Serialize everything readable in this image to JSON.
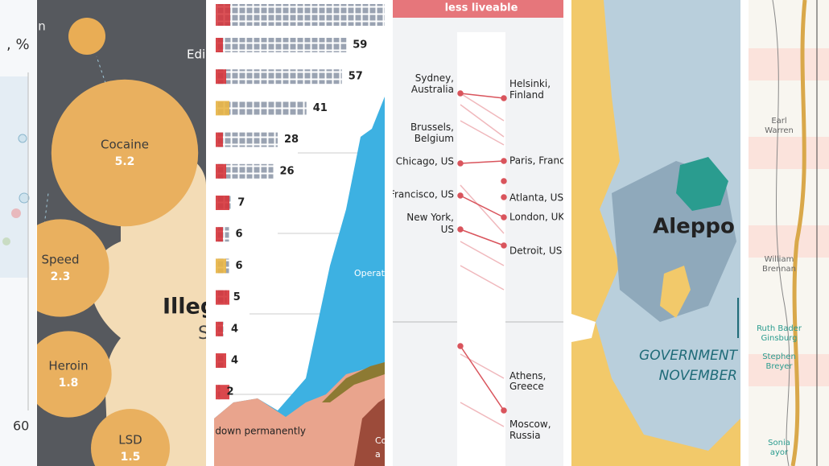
{
  "panels": {
    "axis_panel": {
      "unit_label": ", %",
      "tick": "60"
    },
    "drugs_panel": {
      "top_labels": [
        "vian",
        "Edi"
      ],
      "bubbles": [
        {
          "label": "Cocaine",
          "value": 5.2
        },
        {
          "label": "Speed",
          "value": 2.3
        },
        {
          "label": "Heroin",
          "value": 1.8
        },
        {
          "label": "LSD",
          "value": 1.5
        }
      ],
      "big_title": "Illeg",
      "subtitle": "S"
    },
    "waffle_panel": {
      "values": [
        59,
        57,
        41,
        28,
        26,
        7,
        6,
        6,
        5,
        4,
        4,
        2
      ],
      "area_labels": [
        "Shut down permanently",
        "Operat",
        "Co",
        "a"
      ]
    },
    "cities_panel": {
      "header": "less liveable",
      "left_cities": [
        "Sydney, Australia",
        "Brussels, Belgium",
        "Chicago, US",
        "Francisco, US",
        "New York, US"
      ],
      "right_cities": [
        "Helsinki, Finland",
        "Paris, Franc",
        "Atlanta, US",
        "London, UK",
        "Detroit, US",
        "Athens, Greece",
        "Moscow, Russia"
      ]
    },
    "map_panel": {
      "city": "Aleppo",
      "caption_line1": "GOVERNMENT",
      "caption_line2": "NOVEMBER"
    },
    "court_panel": {
      "names": [
        "Earl Warren",
        "William Brennan",
        "Ruth Bader Ginsburg",
        "Stephen Breyer",
        "Sonia ayor"
      ]
    }
  }
}
